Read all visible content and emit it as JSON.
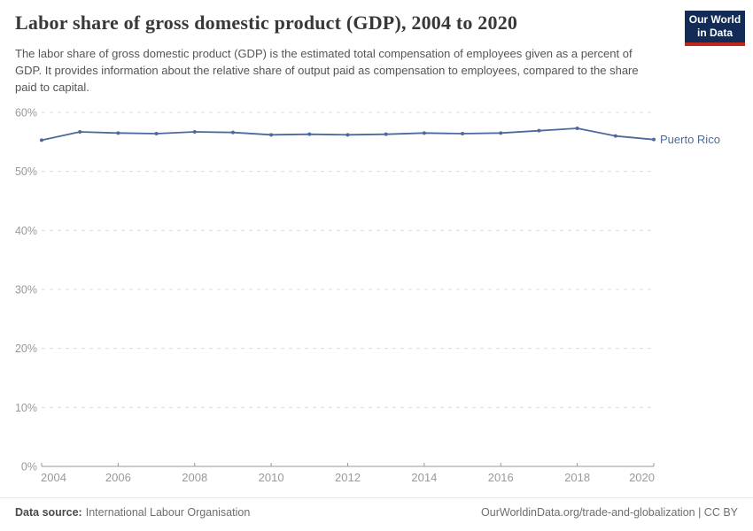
{
  "header": {
    "title": "Labor share of gross domestic product (GDP), 2004 to 2020",
    "subtitle": "The labor share of gross domestic product (GDP) is the estimated total compensation of employees given as a percent of GDP. It provides information about the relative share of output paid as compensation to employees, compared to the share paid to capital.",
    "logo": {
      "line1": "Our World",
      "line2": "in Data",
      "bg_color": "#122C57",
      "accent_color": "#C0271D"
    }
  },
  "chart_data": {
    "type": "line",
    "title": "Labor share of gross domestic product (GDP), 2004 to 2020",
    "x": [
      2004,
      2005,
      2006,
      2007,
      2008,
      2009,
      2010,
      2011,
      2012,
      2013,
      2014,
      2015,
      2016,
      2017,
      2018,
      2019,
      2020
    ],
    "series": [
      {
        "name": "Puerto Rico",
        "color": "#4C6A9C",
        "values": [
          55.3,
          56.7,
          56.5,
          56.4,
          56.7,
          56.6,
          56.2,
          56.3,
          56.2,
          56.3,
          56.5,
          56.4,
          56.5,
          56.9,
          57.3,
          56.0,
          55.4
        ]
      }
    ],
    "xlabel": "",
    "ylabel": "",
    "xlim": [
      2004,
      2020
    ],
    "ylim": [
      0,
      60
    ],
    "grid": "horizontal-dashed",
    "legend_position": "end-of-line-label",
    "y_ticks": [
      {
        "value": 0,
        "label": "0%"
      },
      {
        "value": 10,
        "label": "10%"
      },
      {
        "value": 20,
        "label": "20%"
      },
      {
        "value": 30,
        "label": "30%"
      },
      {
        "value": 40,
        "label": "40%"
      },
      {
        "value": 50,
        "label": "50%"
      },
      {
        "value": 60,
        "label": "60%"
      }
    ],
    "x_ticks": [
      {
        "value": 2004,
        "label": "2004"
      },
      {
        "value": 2006,
        "label": "2006"
      },
      {
        "value": 2008,
        "label": "2008"
      },
      {
        "value": 2010,
        "label": "2010"
      },
      {
        "value": 2012,
        "label": "2012"
      },
      {
        "value": 2014,
        "label": "2014"
      },
      {
        "value": 2016,
        "label": "2016"
      },
      {
        "value": 2018,
        "label": "2018"
      },
      {
        "value": 2020,
        "label": "2020"
      }
    ],
    "colors": {
      "gridline": "#dcdcdc",
      "axis": "#9a9a9a",
      "tick_text": "#999999"
    }
  },
  "footer": {
    "source_label": "Data source:",
    "source_value": "International Labour Organisation",
    "credit": "OurWorldinData.org/trade-and-globalization | CC BY"
  }
}
